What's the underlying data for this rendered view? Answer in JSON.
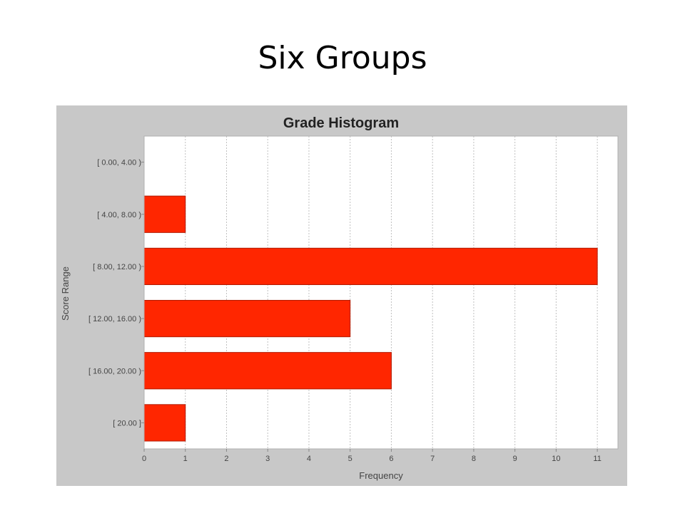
{
  "slide": {
    "title": "Six Groups"
  },
  "colors": {
    "panel_background": "#c8c8c8",
    "plot_background": "#ffffff",
    "bar_fill": "#ff2600",
    "bar_stroke": "#b01a00",
    "gridline": "#c0c0c0"
  },
  "chart_data": {
    "type": "bar",
    "orientation": "horizontal",
    "title": "Grade Histogram",
    "xlabel": "Frequency",
    "ylabel": "Score Range",
    "categories": [
      "[ 0.00, 4.00 )",
      "[ 4.00, 8.00 )",
      "[ 8.00, 12.00 )",
      "[ 12.00, 16.00 )",
      "[ 16.00, 20.00 )",
      "[ 20.00 ]"
    ],
    "values": [
      0,
      1,
      11,
      5,
      6,
      1
    ],
    "xlim": [
      0,
      11.5
    ],
    "xticks": [
      0,
      1,
      2,
      3,
      4,
      5,
      6,
      7,
      8,
      9,
      10,
      11
    ],
    "grid": "vertical dashed",
    "legend": "none"
  }
}
